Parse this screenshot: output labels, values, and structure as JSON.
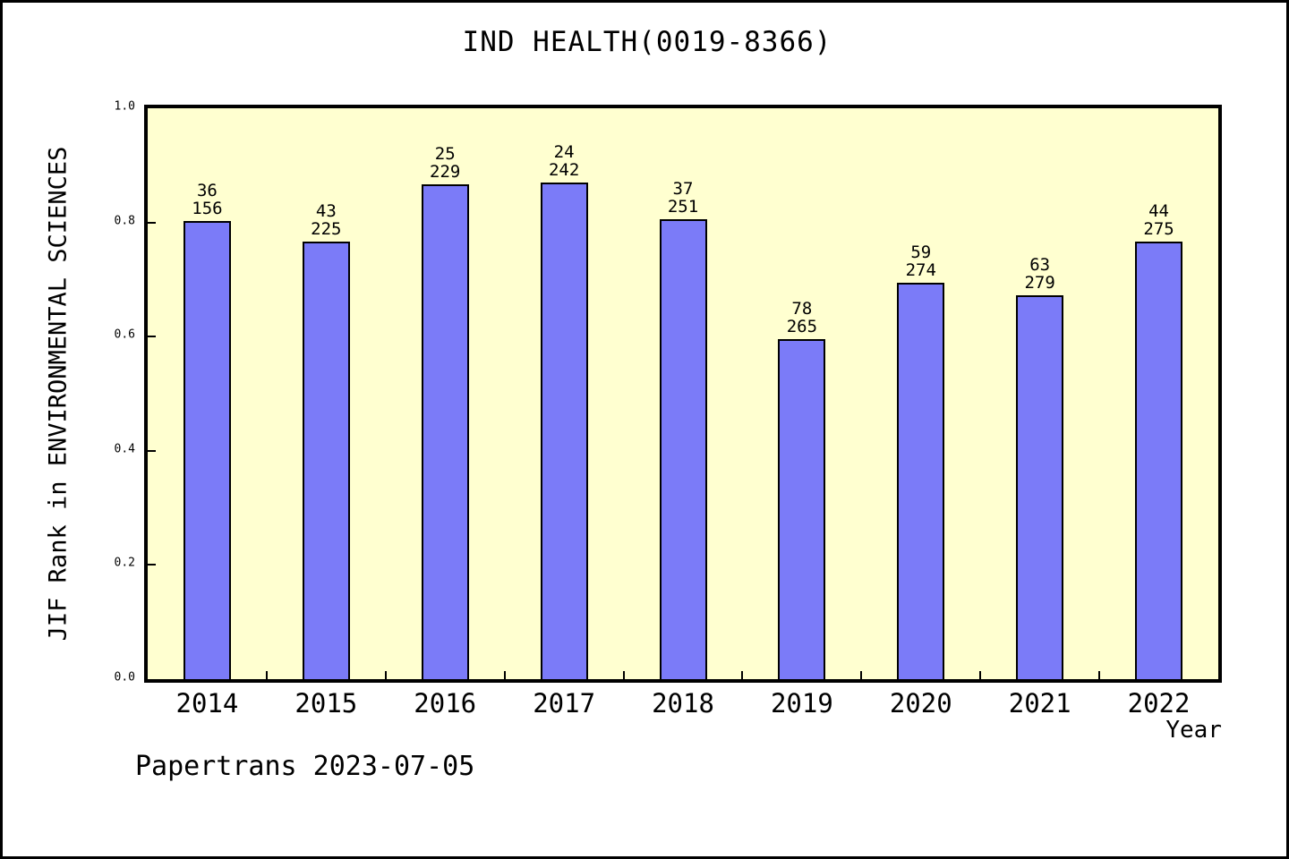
{
  "figure": {
    "footer": "Papertrans 2023-07-05"
  },
  "chart_data": {
    "type": "bar",
    "title": "IND HEALTH(0019-8366)",
    "xlabel": "Year",
    "ylabel": "JIF Rank in ENVIRONMENTAL SCIENCES",
    "categories": [
      "2014",
      "2015",
      "2016",
      "2017",
      "2018",
      "2019",
      "2020",
      "2021",
      "2022"
    ],
    "values": [
      0.802,
      0.767,
      0.867,
      0.87,
      0.806,
      0.595,
      0.695,
      0.673,
      0.767
    ],
    "bar_labels": [
      {
        "rank": "36",
        "total": "156"
      },
      {
        "rank": "43",
        "total": "225"
      },
      {
        "rank": "25",
        "total": "229"
      },
      {
        "rank": "24",
        "total": "242"
      },
      {
        "rank": "37",
        "total": "251"
      },
      {
        "rank": "78",
        "total": "265"
      },
      {
        "rank": "59",
        "total": "274"
      },
      {
        "rank": "63",
        "total": "279"
      },
      {
        "rank": "44",
        "total": "275"
      }
    ],
    "ylim": [
      0.0,
      1.0
    ],
    "yticks": [
      0.0,
      0.2,
      0.4,
      0.6,
      0.8,
      1.0
    ],
    "ytick_labels": [
      "0.0",
      "0.2",
      "0.4",
      "0.6",
      "0.8",
      "1.0"
    ],
    "grid": false,
    "legend_position": "none",
    "colors": {
      "bar_fill": "#7b7bf8",
      "bar_edge": "#000000",
      "plot_background": "#ffffd0",
      "figure_background": "#ffffff",
      "frame": "#000000",
      "text": "#000000"
    }
  }
}
